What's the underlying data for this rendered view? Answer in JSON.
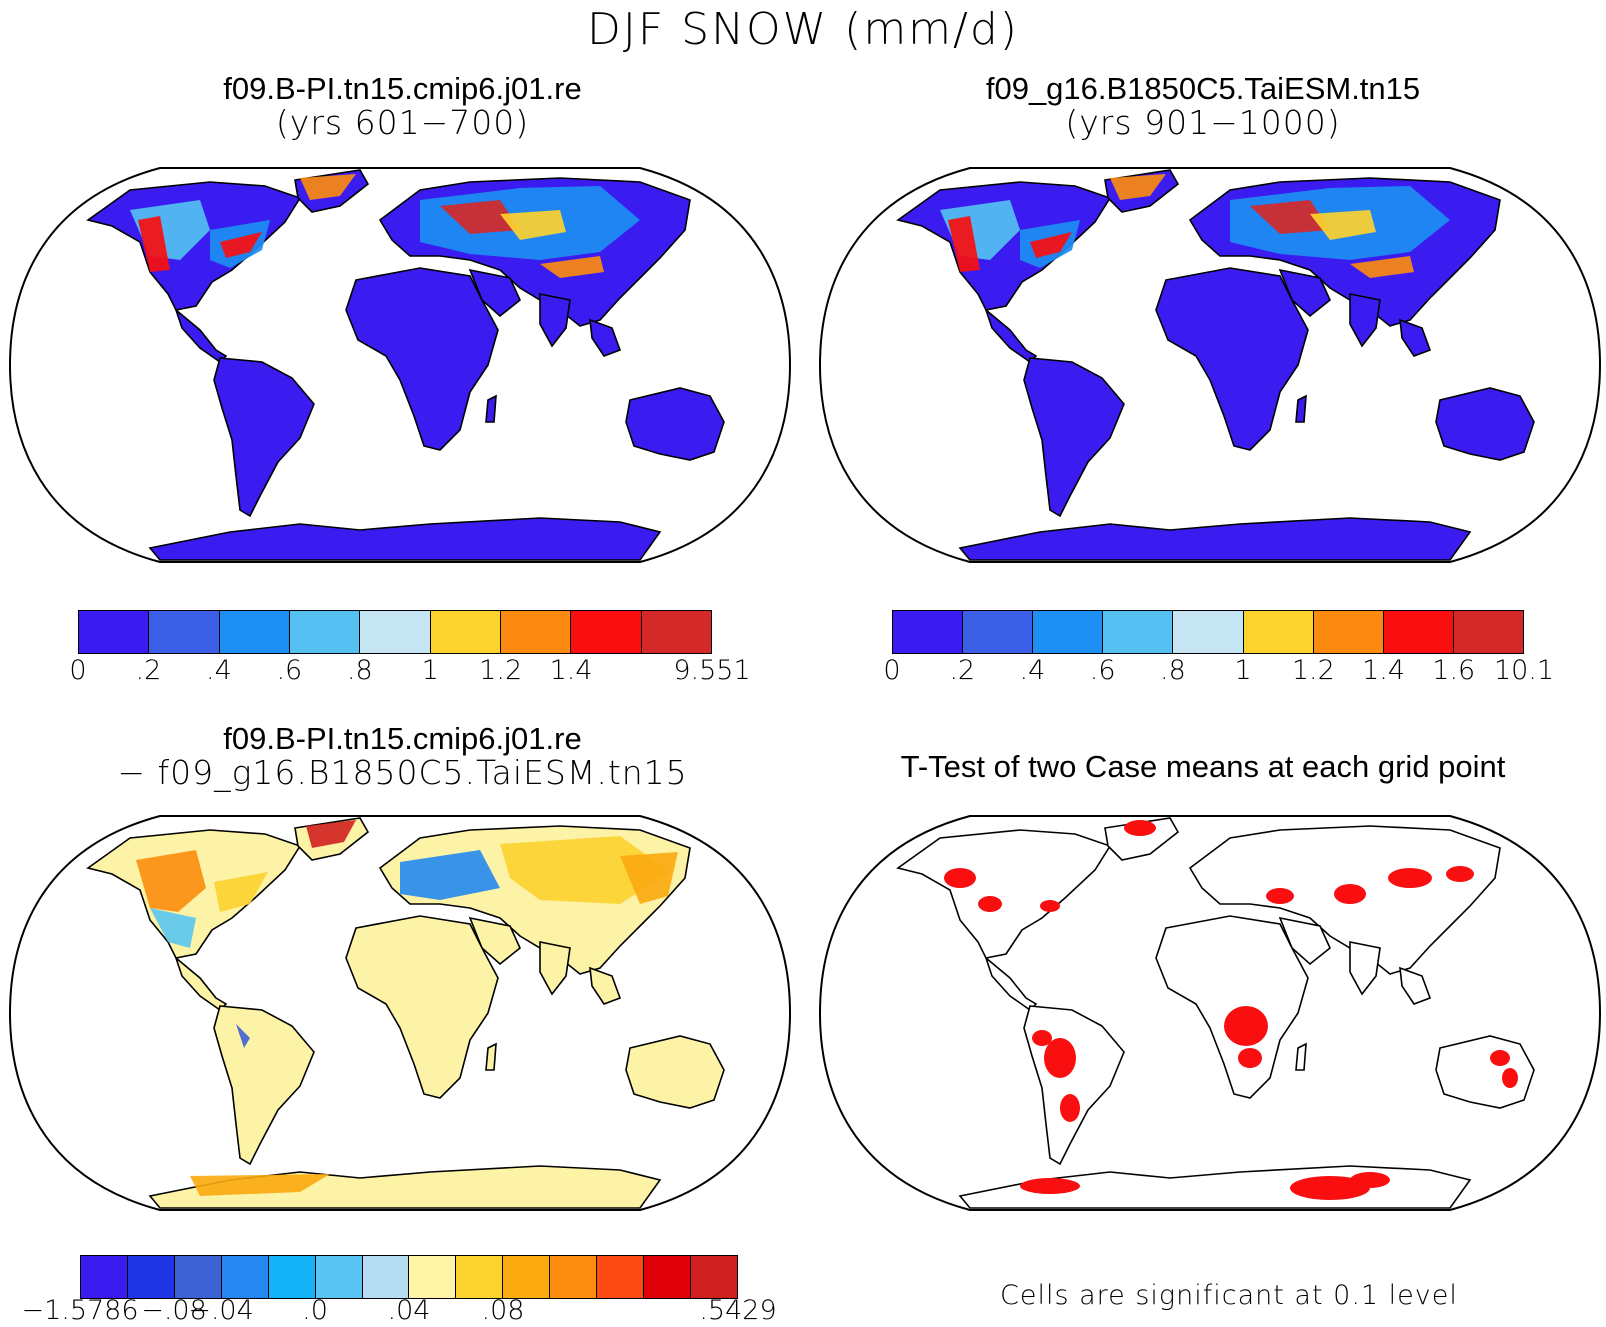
{
  "title": "DJF SNOW (mm/d)",
  "panels": [
    {
      "line1": "f09.B-PI.tn15.cmip6.j01.re",
      "line2": "(yrs 601−700)"
    },
    {
      "line1": "f09_g16.B1850C5.TaiESM.tn15",
      "line2": "(yrs 901−1000)"
    },
    {
      "line1": "f09.B-PI.tn15.cmip6.j01.re",
      "line2": "− f09_g16.B1850C5.TaiESM.tn15"
    },
    {
      "line1": "T-Test of two Case means at each grid point",
      "line2": ""
    }
  ],
  "colorbars": [
    {
      "colors": [
        "#3b1cf0",
        "#3b5ee6",
        "#1d8ef2",
        "#55c0f2",
        "#c5e5f3",
        "#fcd22f",
        "#fc8a10",
        "#f90f0f",
        "#d42929"
      ],
      "labels": [
        "0",
        ".2",
        ".4",
        ".6",
        ".8",
        "1",
        "1.2",
        "1.4",
        "9.551"
      ]
    },
    {
      "colors": [
        "#3b1cf0",
        "#3b5ee6",
        "#1d8ef2",
        "#55c0f2",
        "#c5e5f3",
        "#fcd22f",
        "#fc8a10",
        "#f90f0f",
        "#d42929"
      ],
      "labels": [
        "0",
        ".2",
        ".4",
        ".6",
        ".8",
        "1",
        "1.2",
        "1.4",
        "1.6",
        "10.1"
      ]
    },
    {
      "colors": [
        "#3b1cf0",
        "#2035e5",
        "#3c62d6",
        "#2488f0",
        "#14b2f6",
        "#5ac5f2",
        "#b6dcf2",
        "#fff3a6",
        "#fcd22f",
        "#fbaa10",
        "#fc8d10",
        "#fc4a12",
        "#e0000a",
        "#d02020"
      ],
      "labels": [
        "−1.5786",
        "−.08",
        "−.04",
        ".0",
        ".04",
        ".08",
        ".5429"
      ]
    }
  ],
  "footnote": "Cells are significant at 0.1 level",
  "map_colors": {
    "land_low": "#3b1cf0",
    "diff_neutral": "#fcf3a6",
    "significant": "#f90f0f"
  }
}
